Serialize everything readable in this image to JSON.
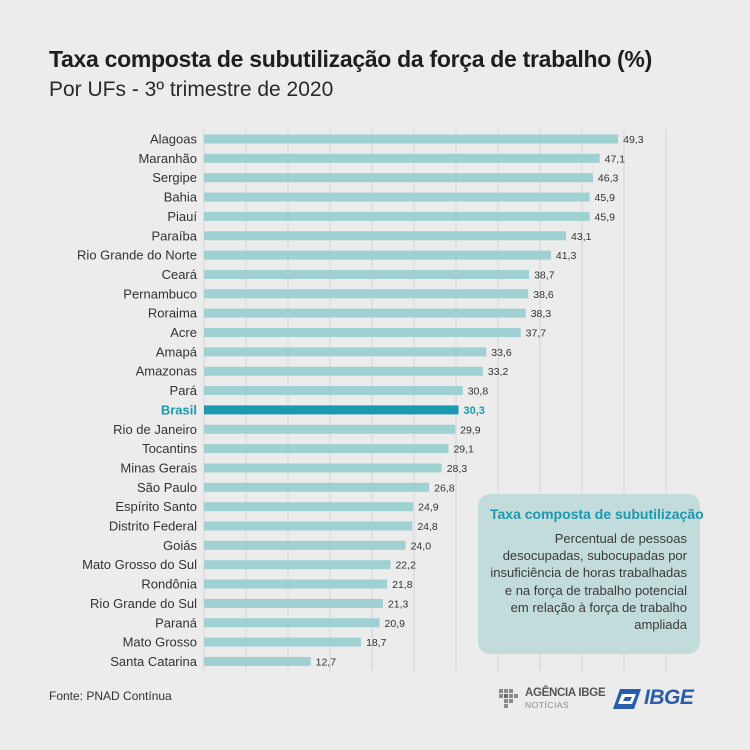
{
  "header": {
    "title": "Taxa composta de subutilização da força de trabalho (%)",
    "subtitle": "Por UFs - 3º trimestre de 2020"
  },
  "chart_data": {
    "type": "bar",
    "orientation": "horizontal",
    "title": "Taxa composta de subutilização da força de trabalho (%)",
    "subtitle": "Por UFs - 3º trimestre de 2020",
    "categories": [
      "Alagoas",
      "Maranhão",
      "Sergipe",
      "Bahia",
      "Piauí",
      "Paraíba",
      "Rio Grande do Norte",
      "Ceará",
      "Pernambuco",
      "Roraima",
      "Acre",
      "Amapá",
      "Amazonas",
      "Pará",
      "Brasil",
      "Rio de Janeiro",
      "Tocantins",
      "Minas Gerais",
      "São Paulo",
      "Espírito Santo",
      "Distrito Federal",
      "Goiás",
      "Mato Grosso do Sul",
      "Rondônia",
      "Rio Grande do Sul",
      "Paraná",
      "Mato Grosso",
      "Santa Catarina"
    ],
    "values": [
      49.3,
      47.1,
      46.3,
      45.9,
      45.9,
      43.1,
      41.3,
      38.7,
      38.6,
      38.3,
      37.7,
      33.6,
      33.2,
      30.8,
      30.3,
      29.9,
      29.1,
      28.3,
      26.8,
      24.9,
      24.8,
      24.0,
      22.2,
      21.8,
      21.3,
      20.9,
      18.7,
      12.7
    ],
    "value_labels": [
      "49,3",
      "47,1",
      "46,3",
      "45,9",
      "45,9",
      "43,1",
      "41,3",
      "38,7",
      "38,6",
      "38,3",
      "37,7",
      "33,6",
      "33,2",
      "30,8",
      "30,3",
      "29,9",
      "29,1",
      "28,3",
      "26,8",
      "24,9",
      "24,8",
      "24,0",
      "22,2",
      "21,8",
      "21,3",
      "20,9",
      "18,7",
      "12,7"
    ],
    "highlight": "Brasil",
    "xlim": [
      0,
      55
    ],
    "grid": true,
    "colors": {
      "bar": "#9fd0d2",
      "highlight": "#1a99b0",
      "grid": "#d3d3d3"
    }
  },
  "info_box": {
    "title": "Taxa composta de subutilização",
    "text": "Percentual de pessoas desocupadas, subocupadas por insuficiência de horas trabalhadas e na força de trabalho potencial em relação à força de trabalho ampliada"
  },
  "footer": {
    "source": "Fonte: PNAD Contínua",
    "agencia_name": "AGÊNCIA IBGE",
    "agencia_sub": "NOTÍCIAS",
    "ibge": "IBGE"
  }
}
